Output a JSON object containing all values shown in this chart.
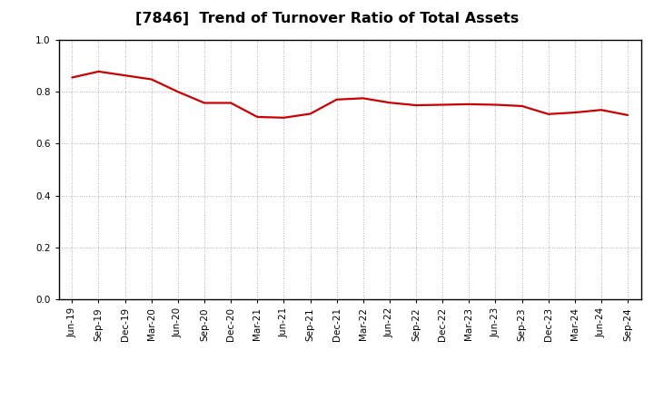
{
  "title": "[7846]  Trend of Turnover Ratio of Total Assets",
  "x_labels": [
    "Jun-19",
    "Sep-19",
    "Dec-19",
    "Mar-20",
    "Jun-20",
    "Sep-20",
    "Dec-20",
    "Mar-21",
    "Jun-21",
    "Sep-21",
    "Dec-21",
    "Mar-22",
    "Jun-22",
    "Sep-22",
    "Dec-22",
    "Mar-23",
    "Jun-23",
    "Sep-23",
    "Dec-23",
    "Mar-24",
    "Jun-24",
    "Sep-24"
  ],
  "values": [
    0.855,
    0.878,
    0.863,
    0.848,
    0.8,
    0.757,
    0.757,
    0.703,
    0.7,
    0.715,
    0.77,
    0.775,
    0.758,
    0.748,
    0.75,
    0.752,
    0.75,
    0.745,
    0.714,
    0.72,
    0.73,
    0.71
  ],
  "line_color": "#cc0000",
  "line_width": 1.6,
  "ylim": [
    0.0,
    1.0
  ],
  "yticks": [
    0.0,
    0.2,
    0.4,
    0.6,
    0.8,
    1.0
  ],
  "grid_color": "#999999",
  "bg_color": "#ffffff",
  "title_fontsize": 11.5,
  "tick_fontsize": 7.5
}
